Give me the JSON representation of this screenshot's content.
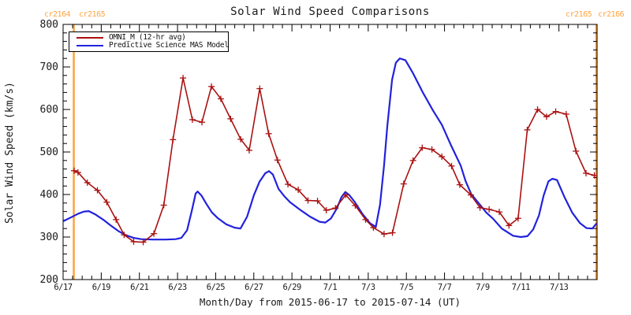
{
  "figure": {
    "title": "Solar Wind Speed Comparisons",
    "x_axis_title": "Month/Day from 2015-06-17 to 2015-07-14 (UT)",
    "y_axis_title": "Solar Wind Speed (km/s)"
  },
  "carrington": {
    "top_left": {
      "left_label": "cr2164",
      "right_label": "cr2165"
    },
    "top_right": {
      "left_label": "cr2165",
      "right_label": "cr2166"
    }
  },
  "legend": {
    "position": "top-left",
    "entries": [
      {
        "label": "OMNI_M (12-hr avg)",
        "color": "#aa1111"
      },
      {
        "label": "Predictive Science MAS Model",
        "color": "#2222dd"
      }
    ]
  },
  "colors": {
    "omni": "#aa1111",
    "model": "#2222dd",
    "carrington": "#ffa33f",
    "axis": "#000000",
    "background": "#ffffff"
  },
  "chart_data": {
    "type": "line",
    "title": "Solar Wind Speed Comparisons",
    "xlabel": "Month/Day from 2015-06-17 to 2015-07-14 (UT)",
    "ylabel": "Solar Wind Speed (km/s)",
    "x_unit": "days since 2015-06-17 00:00 UT",
    "xlim": [
      0,
      28
    ],
    "ylim": [
      200,
      800
    ],
    "grid": false,
    "legend_position": "top-left",
    "x_major_ticks": [
      {
        "day": 0,
        "label": "6/17"
      },
      {
        "day": 2,
        "label": "6/19"
      },
      {
        "day": 4,
        "label": "6/21"
      },
      {
        "day": 6,
        "label": "6/23"
      },
      {
        "day": 8,
        "label": "6/25"
      },
      {
        "day": 10,
        "label": "6/27"
      },
      {
        "day": 12,
        "label": "6/29"
      },
      {
        "day": 14,
        "label": "7/1"
      },
      {
        "day": 16,
        "label": "7/3"
      },
      {
        "day": 18,
        "label": "7/5"
      },
      {
        "day": 20,
        "label": "7/7"
      },
      {
        "day": 22,
        "label": "7/9"
      },
      {
        "day": 24,
        "label": "7/11"
      },
      {
        "day": 26,
        "label": "7/13"
      }
    ],
    "x_minor_step": 0.5,
    "y_major_step": 100,
    "y_minor_step": 20,
    "carrington_boundary_days": [
      0.56,
      27.96
    ],
    "series": [
      {
        "name": "OMNI_M (12-hr avg)",
        "color": "#aa1111",
        "marker": "plus",
        "points": [
          [
            0.58,
            456
          ],
          [
            0.78,
            452
          ],
          [
            1.27,
            428
          ],
          [
            1.8,
            410
          ],
          [
            2.29,
            382
          ],
          [
            2.78,
            341
          ],
          [
            3.2,
            305
          ],
          [
            3.7,
            289
          ],
          [
            4.2,
            288
          ],
          [
            4.76,
            308
          ],
          [
            5.28,
            375
          ],
          [
            5.76,
            529
          ],
          [
            6.29,
            674
          ],
          [
            6.78,
            576
          ],
          [
            7.28,
            570
          ],
          [
            7.78,
            654
          ],
          [
            8.27,
            625
          ],
          [
            8.78,
            578
          ],
          [
            9.31,
            530
          ],
          [
            9.76,
            504
          ],
          [
            10.31,
            649
          ],
          [
            10.78,
            543
          ],
          [
            11.24,
            481
          ],
          [
            11.79,
            424
          ],
          [
            12.33,
            411
          ],
          [
            12.84,
            386
          ],
          [
            13.34,
            385
          ],
          [
            13.8,
            363
          ],
          [
            14.28,
            368
          ],
          [
            14.82,
            399
          ],
          [
            15.32,
            374
          ],
          [
            15.86,
            341
          ],
          [
            16.27,
            322
          ],
          [
            16.83,
            307
          ],
          [
            17.27,
            310
          ],
          [
            17.86,
            425
          ],
          [
            18.35,
            480
          ],
          [
            18.83,
            510
          ],
          [
            19.34,
            506
          ],
          [
            19.86,
            489
          ],
          [
            20.37,
            467
          ],
          [
            20.8,
            423
          ],
          [
            21.38,
            399
          ],
          [
            21.86,
            369
          ],
          [
            22.34,
            365
          ],
          [
            22.87,
            359
          ],
          [
            23.38,
            327
          ],
          [
            23.86,
            344
          ],
          [
            24.34,
            552
          ],
          [
            24.88,
            600
          ],
          [
            25.35,
            583
          ],
          [
            25.83,
            595
          ],
          [
            26.38,
            589
          ],
          [
            26.89,
            502
          ],
          [
            27.42,
            450
          ],
          [
            27.86,
            445
          ]
        ]
      },
      {
        "name": "Predictive Science MAS Model",
        "color": "#2222dd",
        "marker": "none",
        "points": [
          [
            0.0,
            337
          ],
          [
            0.4,
            346
          ],
          [
            0.8,
            355
          ],
          [
            1.1,
            360
          ],
          [
            1.35,
            361
          ],
          [
            1.7,
            353
          ],
          [
            2.1,
            341
          ],
          [
            2.5,
            327
          ],
          [
            2.9,
            314
          ],
          [
            3.3,
            304
          ],
          [
            3.7,
            298
          ],
          [
            4.1,
            295
          ],
          [
            4.7,
            294
          ],
          [
            5.4,
            294
          ],
          [
            5.9,
            295
          ],
          [
            6.2,
            298
          ],
          [
            6.5,
            316
          ],
          [
            6.75,
            362
          ],
          [
            6.95,
            402
          ],
          [
            7.05,
            407
          ],
          [
            7.25,
            398
          ],
          [
            7.5,
            379
          ],
          [
            7.8,
            358
          ],
          [
            8.1,
            345
          ],
          [
            8.55,
            330
          ],
          [
            9.0,
            322
          ],
          [
            9.3,
            320
          ],
          [
            9.65,
            348
          ],
          [
            10.0,
            398
          ],
          [
            10.3,
            430
          ],
          [
            10.6,
            450
          ],
          [
            10.8,
            455
          ],
          [
            11.0,
            447
          ],
          [
            11.3,
            413
          ],
          [
            11.6,
            396
          ],
          [
            11.9,
            382
          ],
          [
            12.4,
            365
          ],
          [
            12.95,
            348
          ],
          [
            13.45,
            336
          ],
          [
            13.75,
            334
          ],
          [
            14.05,
            344
          ],
          [
            14.35,
            367
          ],
          [
            14.6,
            394
          ],
          [
            14.8,
            406
          ],
          [
            15.0,
            399
          ],
          [
            15.3,
            382
          ],
          [
            15.7,
            354
          ],
          [
            16.1,
            332
          ],
          [
            16.4,
            324
          ],
          [
            16.62,
            376
          ],
          [
            16.83,
            468
          ],
          [
            17.0,
            560
          ],
          [
            17.25,
            670
          ],
          [
            17.45,
            710
          ],
          [
            17.65,
            720
          ],
          [
            17.95,
            716
          ],
          [
            18.35,
            685
          ],
          [
            18.85,
            641
          ],
          [
            19.4,
            597
          ],
          [
            19.86,
            564
          ],
          [
            20.35,
            515
          ],
          [
            20.85,
            468
          ],
          [
            21.1,
            432
          ],
          [
            21.4,
            401
          ],
          [
            21.86,
            376
          ],
          [
            22.2,
            357
          ],
          [
            22.55,
            343
          ],
          [
            23.0,
            320
          ],
          [
            23.6,
            303
          ],
          [
            24.0,
            300
          ],
          [
            24.35,
            302
          ],
          [
            24.65,
            318
          ],
          [
            24.95,
            351
          ],
          [
            25.2,
            398
          ],
          [
            25.45,
            431
          ],
          [
            25.65,
            437
          ],
          [
            25.9,
            434
          ],
          [
            26.3,
            393
          ],
          [
            26.7,
            357
          ],
          [
            27.1,
            333
          ],
          [
            27.45,
            321
          ],
          [
            27.75,
            320
          ],
          [
            27.97,
            332
          ]
        ]
      }
    ]
  }
}
